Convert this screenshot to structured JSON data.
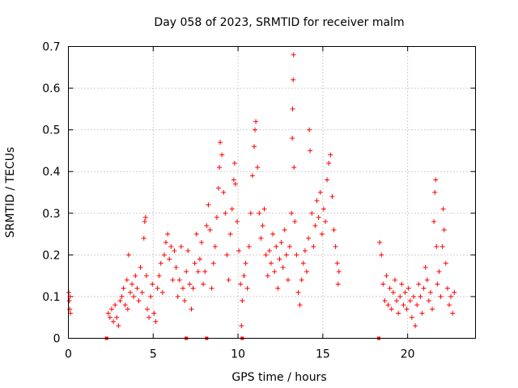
{
  "chart_data": {
    "type": "scatter",
    "title": "Day 058 of 2023, SRMTID for receiver malm",
    "xlabel": "GPS time / hours",
    "ylabel": "SRMTID / TECUs",
    "xlim": [
      0,
      24
    ],
    "ylim": [
      0,
      0.7
    ],
    "xticks": [
      0,
      5,
      10,
      15,
      20
    ],
    "yticks": [
      0,
      0.1,
      0.2,
      0.3,
      0.4,
      0.5,
      0.6,
      0.7
    ],
    "xtick_labels": [
      "0",
      "5",
      "10",
      "15",
      "20"
    ],
    "ytick_labels": [
      "0",
      "0.1",
      "0.2",
      "0.3",
      "0.4",
      "0.5",
      "0.6",
      "0.7"
    ],
    "grid": true,
    "marker": "plus",
    "color": "#ff0000",
    "series": [
      {
        "name": "SRMTID",
        "points": [
          [
            0.02,
            0.11
          ],
          [
            0.05,
            0.09
          ],
          [
            0.08,
            0.07
          ],
          [
            0.1,
            0.1
          ],
          [
            0.12,
            0.06
          ],
          [
            2.35,
            0.06
          ],
          [
            2.45,
            0.05
          ],
          [
            2.55,
            0.07
          ],
          [
            2.65,
            0.04
          ],
          [
            2.75,
            0.08
          ],
          [
            2.85,
            0.05
          ],
          [
            2.95,
            0.03
          ],
          [
            3.05,
            0.09
          ],
          [
            3.15,
            0.1
          ],
          [
            3.25,
            0.12
          ],
          [
            3.35,
            0.08
          ],
          [
            3.45,
            0.14
          ],
          [
            3.5,
            0.07
          ],
          [
            3.55,
            0.2
          ],
          [
            3.65,
            0.11
          ],
          [
            3.75,
            0.13
          ],
          [
            3.85,
            0.1
          ],
          [
            3.95,
            0.15
          ],
          [
            4.05,
            0.12
          ],
          [
            4.15,
            0.09
          ],
          [
            4.25,
            0.17
          ],
          [
            4.35,
            0.11
          ],
          [
            4.45,
            0.24
          ],
          [
            4.5,
            0.28
          ],
          [
            4.55,
            0.29
          ],
          [
            4.6,
            0.15
          ],
          [
            4.65,
            0.07
          ],
          [
            4.75,
            0.05
          ],
          [
            4.85,
            0.1
          ],
          [
            4.95,
            0.13
          ],
          [
            5.05,
            0.06
          ],
          [
            5.15,
            0.04
          ],
          [
            5.25,
            0.12
          ],
          [
            5.35,
            0.15
          ],
          [
            5.45,
            0.18
          ],
          [
            5.55,
            0.11
          ],
          [
            5.65,
            0.2
          ],
          [
            5.75,
            0.23
          ],
          [
            5.85,
            0.25
          ],
          [
            5.95,
            0.19
          ],
          [
            6.05,
            0.22
          ],
          [
            6.15,
            0.14
          ],
          [
            6.25,
            0.21
          ],
          [
            6.35,
            0.17
          ],
          [
            6.45,
            0.1
          ],
          [
            6.55,
            0.14
          ],
          [
            6.65,
            0.22
          ],
          [
            6.75,
            0.12
          ],
          [
            6.85,
            0.09
          ],
          [
            6.95,
            0.16
          ],
          [
            7.05,
            0.21
          ],
          [
            7.15,
            0.13
          ],
          [
            7.25,
            0.07
          ],
          [
            7.35,
            0.12
          ],
          [
            7.45,
            0.18
          ],
          [
            7.55,
            0.25
          ],
          [
            7.65,
            0.16
          ],
          [
            7.75,
            0.19
          ],
          [
            7.85,
            0.23
          ],
          [
            7.95,
            0.13
          ],
          [
            8.05,
            0.16
          ],
          [
            8.15,
            0.27
          ],
          [
            8.25,
            0.32
          ],
          [
            8.35,
            0.26
          ],
          [
            8.45,
            0.12
          ],
          [
            8.55,
            0.18
          ],
          [
            8.65,
            0.22
          ],
          [
            8.75,
            0.29
          ],
          [
            8.85,
            0.36
          ],
          [
            8.9,
            0.41
          ],
          [
            8.95,
            0.47
          ],
          [
            9.05,
            0.44
          ],
          [
            9.15,
            0.35
          ],
          [
            9.25,
            0.3
          ],
          [
            9.35,
            0.2
          ],
          [
            9.45,
            0.14
          ],
          [
            9.55,
            0.25
          ],
          [
            9.65,
            0.31
          ],
          [
            9.75,
            0.38
          ],
          [
            9.8,
            0.42
          ],
          [
            9.85,
            0.37
          ],
          [
            9.95,
            0.28
          ],
          [
            10.05,
            0.21
          ],
          [
            10.15,
            0.13
          ],
          [
            10.2,
            0.03
          ],
          [
            10.25,
            0.09
          ],
          [
            10.35,
            0.15
          ],
          [
            10.45,
            0.18
          ],
          [
            10.55,
            0.12
          ],
          [
            10.65,
            0.22
          ],
          [
            10.75,
            0.3
          ],
          [
            10.85,
            0.39
          ],
          [
            10.95,
            0.46
          ],
          [
            11.0,
            0.5
          ],
          [
            11.05,
            0.52
          ],
          [
            11.15,
            0.41
          ],
          [
            11.25,
            0.3
          ],
          [
            11.35,
            0.24
          ],
          [
            11.45,
            0.27
          ],
          [
            11.55,
            0.31
          ],
          [
            11.65,
            0.2
          ],
          [
            11.75,
            0.15
          ],
          [
            11.85,
            0.21
          ],
          [
            11.95,
            0.18
          ],
          [
            12.05,
            0.25
          ],
          [
            12.15,
            0.16
          ],
          [
            12.25,
            0.22
          ],
          [
            12.35,
            0.12
          ],
          [
            12.45,
            0.19
          ],
          [
            12.55,
            0.23
          ],
          [
            12.65,
            0.17
          ],
          [
            12.75,
            0.26
          ],
          [
            12.85,
            0.2
          ],
          [
            12.95,
            0.14
          ],
          [
            13.05,
            0.22
          ],
          [
            13.15,
            0.3
          ],
          [
            13.2,
            0.48
          ],
          [
            13.22,
            0.55
          ],
          [
            13.25,
            0.62
          ],
          [
            13.27,
            0.68
          ],
          [
            13.3,
            0.41
          ],
          [
            13.35,
            0.28
          ],
          [
            13.45,
            0.2
          ],
          [
            13.55,
            0.11
          ],
          [
            13.65,
            0.08
          ],
          [
            13.75,
            0.14
          ],
          [
            13.85,
            0.18
          ],
          [
            13.95,
            0.21
          ],
          [
            14.05,
            0.16
          ],
          [
            14.15,
            0.24
          ],
          [
            14.2,
            0.5
          ],
          [
            14.25,
            0.45
          ],
          [
            14.35,
            0.3
          ],
          [
            14.45,
            0.22
          ],
          [
            14.55,
            0.27
          ],
          [
            14.65,
            0.33
          ],
          [
            14.75,
            0.29
          ],
          [
            14.85,
            0.35
          ],
          [
            14.95,
            0.25
          ],
          [
            15.05,
            0.31
          ],
          [
            15.15,
            0.28
          ],
          [
            15.25,
            0.38
          ],
          [
            15.35,
            0.42
          ],
          [
            15.45,
            0.44
          ],
          [
            15.55,
            0.34
          ],
          [
            15.65,
            0.26
          ],
          [
            15.75,
            0.22
          ],
          [
            15.85,
            0.18
          ],
          [
            15.9,
            0.13
          ],
          [
            15.95,
            0.16
          ],
          [
            18.35,
            0.23
          ],
          [
            18.45,
            0.2
          ],
          [
            18.55,
            0.13
          ],
          [
            18.65,
            0.09
          ],
          [
            18.75,
            0.15
          ],
          [
            18.85,
            0.08
          ],
          [
            18.95,
            0.12
          ],
          [
            19.05,
            0.07
          ],
          [
            19.15,
            0.11
          ],
          [
            19.25,
            0.14
          ],
          [
            19.35,
            0.09
          ],
          [
            19.45,
            0.06
          ],
          [
            19.55,
            0.1
          ],
          [
            19.65,
            0.13
          ],
          [
            19.75,
            0.08
          ],
          [
            19.85,
            0.11
          ],
          [
            19.95,
            0.07
          ],
          [
            20.05,
            0.12
          ],
          [
            20.15,
            0.09
          ],
          [
            20.25,
            0.05
          ],
          [
            20.35,
            0.1
          ],
          [
            20.45,
            0.03
          ],
          [
            20.55,
            0.08
          ],
          [
            20.65,
            0.13
          ],
          [
            20.75,
            0.1
          ],
          [
            20.85,
            0.06
          ],
          [
            20.95,
            0.12
          ],
          [
            21.05,
            0.17
          ],
          [
            21.15,
            0.14
          ],
          [
            21.25,
            0.09
          ],
          [
            21.35,
            0.11
          ],
          [
            21.45,
            0.07
          ],
          [
            21.55,
            0.28
          ],
          [
            21.6,
            0.35
          ],
          [
            21.65,
            0.38
          ],
          [
            21.7,
            0.22
          ],
          [
            21.75,
            0.13
          ],
          [
            21.85,
            0.16
          ],
          [
            21.95,
            0.1
          ],
          [
            22.05,
            0.22
          ],
          [
            22.1,
            0.31
          ],
          [
            22.15,
            0.26
          ],
          [
            22.25,
            0.18
          ],
          [
            22.35,
            0.12
          ],
          [
            22.45,
            0.08
          ],
          [
            22.55,
            0.1
          ],
          [
            22.65,
            0.06
          ],
          [
            22.75,
            0.11
          ]
        ]
      }
    ],
    "baseline_markers_x": [
      2.25,
      6.95,
      8.15,
      10.25,
      18.3
    ]
  }
}
